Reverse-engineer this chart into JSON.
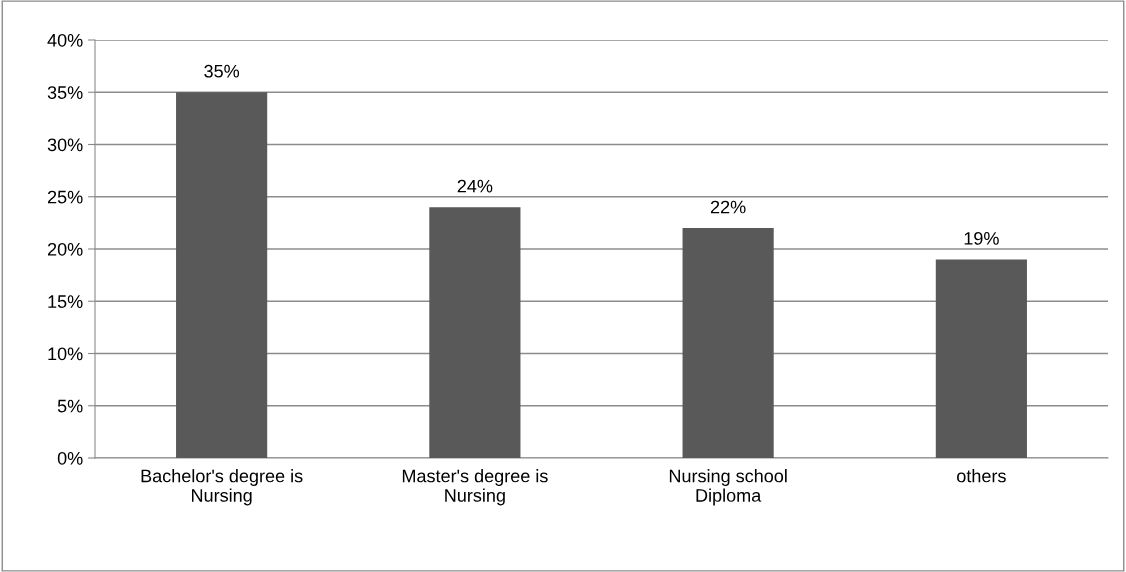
{
  "chart_data": {
    "type": "bar",
    "categories": [
      "Bachelor's degree is\nNursing",
      "Master's degree is\nNursing",
      "Nursing school\nDiploma",
      "others"
    ],
    "values": [
      35,
      24,
      22,
      19
    ],
    "value_labels": [
      "35%",
      "24%",
      "22%",
      "19%"
    ],
    "color": "#595959",
    "ylim": [
      0,
      40
    ],
    "yticks": [
      {
        "value": 0,
        "label": "0%"
      },
      {
        "value": 5,
        "label": "5%"
      },
      {
        "value": 10,
        "label": "10%"
      },
      {
        "value": 15,
        "label": "15%"
      },
      {
        "value": 20,
        "label": "20%"
      },
      {
        "value": 25,
        "label": "25%"
      },
      {
        "value": 30,
        "label": "30%"
      },
      {
        "value": 35,
        "label": "35%"
      },
      {
        "value": 40,
        "label": "40%"
      }
    ],
    "grid": "y",
    "legend": false
  }
}
